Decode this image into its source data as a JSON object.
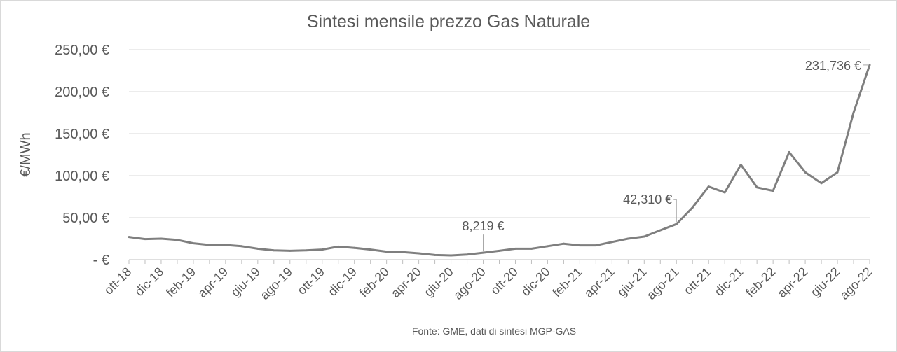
{
  "chart_data": {
    "type": "line",
    "title": "Sintesi mensile prezzo Gas Naturale",
    "ylabel": "€/MWh",
    "ylim": [
      0,
      250
    ],
    "yticks": [
      {
        "value": 0,
        "label": "-   €"
      },
      {
        "value": 50,
        "label": "50,00 €"
      },
      {
        "value": 100,
        "label": "100,00 €"
      },
      {
        "value": 150,
        "label": "150,00 €"
      },
      {
        "value": 200,
        "label": "200,00 €"
      },
      {
        "value": 250,
        "label": "250,00 €"
      }
    ],
    "grid": true,
    "legend": "none",
    "categories": [
      "ott-18",
      "nov-18",
      "dic-18",
      "gen-19",
      "feb-19",
      "mar-19",
      "apr-19",
      "mag-19",
      "giu-19",
      "lug-19",
      "ago-19",
      "set-19",
      "ott-19",
      "nov-19",
      "dic-19",
      "gen-20",
      "feb-20",
      "mar-20",
      "apr-20",
      "mag-20",
      "giu-20",
      "lug-20",
      "ago-20",
      "set-20",
      "ott-20",
      "nov-20",
      "dic-20",
      "gen-21",
      "feb-21",
      "mar-21",
      "apr-21",
      "mag-21",
      "giu-21",
      "lug-21",
      "ago-21",
      "set-21",
      "ott-21",
      "nov-21",
      "dic-21",
      "gen-22",
      "feb-22",
      "mar-22",
      "apr-22",
      "mag-22",
      "giu-22",
      "lug-22",
      "ago-22"
    ],
    "xtick_labels": [
      "ott-18",
      "dic-18",
      "feb-19",
      "apr-19",
      "giu-19",
      "ago-19",
      "ott-19",
      "dic-19",
      "feb-20",
      "apr-20",
      "giu-20",
      "ago-20",
      "ott-20",
      "dic-20",
      "feb-21",
      "apr-21",
      "giu-21",
      "ago-21",
      "ott-21",
      "dic-21",
      "feb-22",
      "apr-22",
      "giu-22",
      "ago-22"
    ],
    "series": [
      {
        "values": [
          27,
          24.5,
          25,
          23.5,
          19.5,
          17.5,
          17.5,
          16,
          13,
          11,
          10.5,
          11,
          12,
          15.5,
          14,
          12,
          9.5,
          9,
          7.5,
          5.5,
          5,
          6,
          8.219,
          10.5,
          13,
          13,
          16,
          19,
          17,
          17,
          21,
          25,
          27.5,
          35,
          42.31,
          62,
          87,
          80,
          113,
          86,
          82,
          128,
          104,
          91,
          104,
          175,
          231.736
        ]
      }
    ],
    "annotations": [
      {
        "category": "ago-20",
        "value": 8.219,
        "label": "8,219 €"
      },
      {
        "category": "ago-21",
        "value": 42.31,
        "label": "42,310 €"
      },
      {
        "category": "ago-22",
        "value": 231.736,
        "label": "231,736 €"
      }
    ],
    "source": "Fonte: GME, dati di sintesi MGP-GAS",
    "colors": {
      "line": "#7f7f7f",
      "grid": "#d9d9d9",
      "text": "#595959"
    }
  }
}
